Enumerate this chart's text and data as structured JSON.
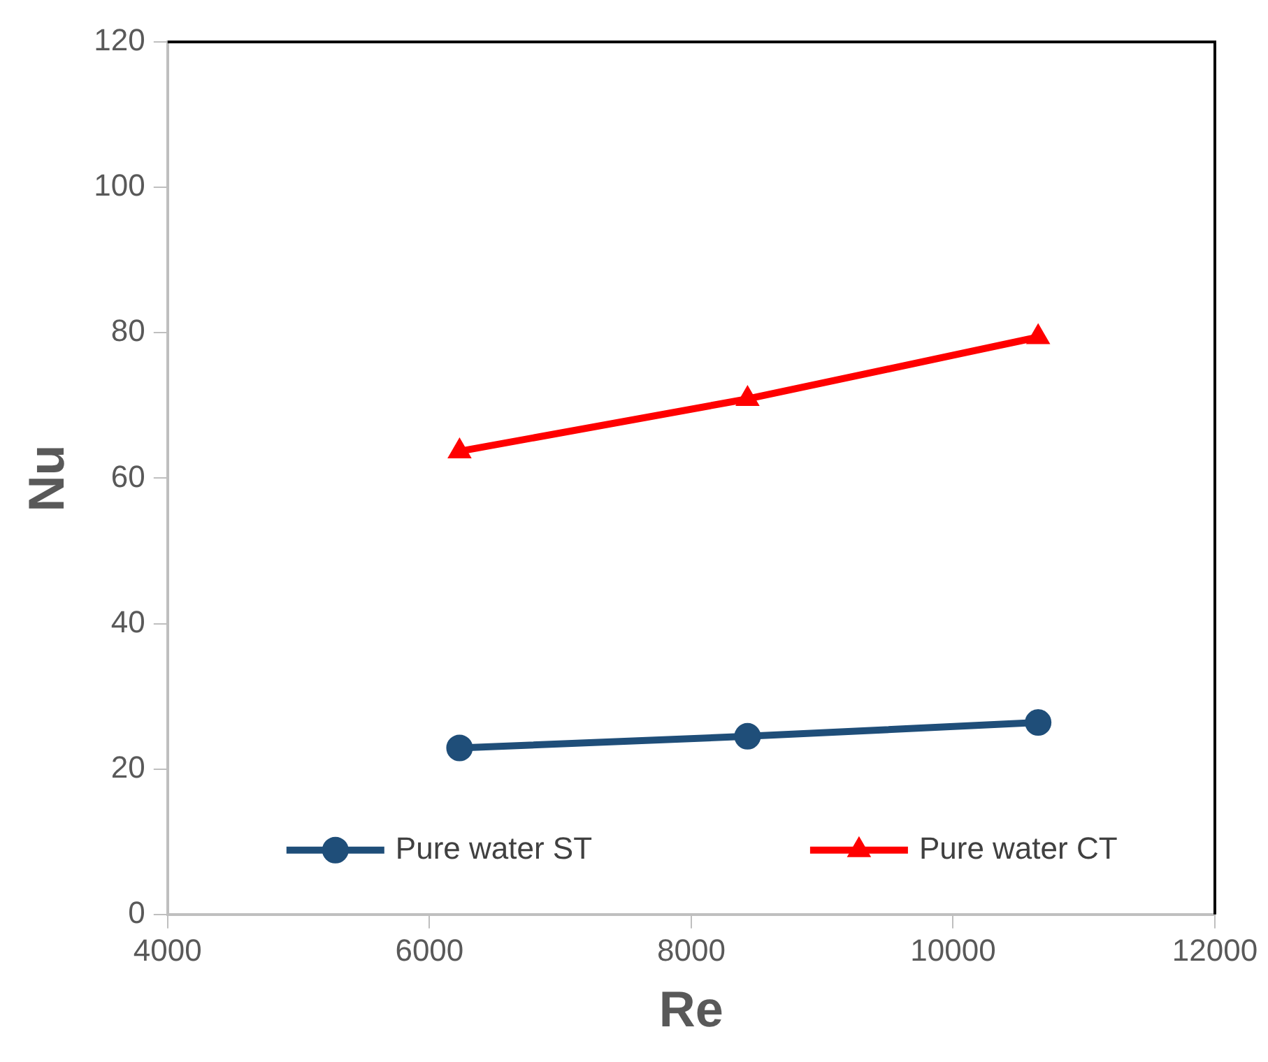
{
  "chart_data": {
    "type": "line",
    "xlabel": "Re",
    "ylabel": "Nu",
    "xlim": [
      4000,
      12000
    ],
    "xticks": [
      4000,
      6000,
      8000,
      10000,
      12000
    ],
    "ylim": [
      0,
      120
    ],
    "yticks": [
      0,
      20,
      40,
      60,
      80,
      100,
      120
    ],
    "grid": false,
    "legend": "bottom",
    "line_style": "solid",
    "series": [
      {
        "name": "Pure water ST",
        "color": "#1f4e79",
        "marker": "circle",
        "x": [
          6230,
          8430,
          10650
        ],
        "values": [
          22.9,
          24.5,
          26.4
        ]
      },
      {
        "name": "Pure water CT",
        "color": "#ff0000",
        "marker": "triangle",
        "x": [
          6230,
          8430,
          10650
        ],
        "values": [
          63.7,
          70.9,
          79.4
        ]
      }
    ]
  }
}
